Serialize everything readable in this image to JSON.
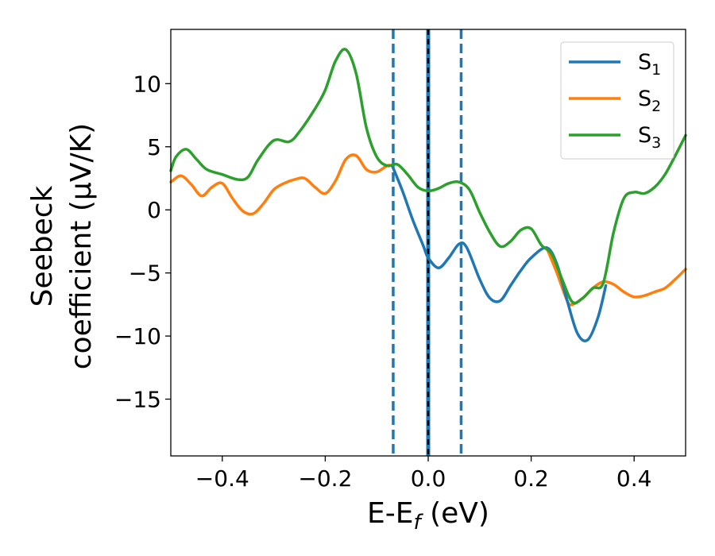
{
  "chart_data": {
    "type": "line",
    "xlabel": "E-E",
    "xlabel_subscript": "f",
    "xlabel_suffix": " (eV)",
    "ylabel_line1": "Seebeck",
    "ylabel_line2": "coefficient  (μV/K)",
    "xlim": [
      -0.5,
      0.5
    ],
    "ylim": [
      -19.5,
      14.3
    ],
    "xticks": [
      -0.4,
      -0.2,
      0.0,
      0.2,
      0.4
    ],
    "xtick_labels": [
      "−0.4",
      "−0.2",
      "0.0",
      "0.2",
      "0.4"
    ],
    "yticks": [
      10,
      5,
      0,
      -5,
      -10,
      -15
    ],
    "ytick_labels": [
      "10",
      "5",
      "0",
      "−5",
      "−10",
      "−15"
    ],
    "legend_position": "top-right",
    "vertical_lines": [
      {
        "x": -0.068,
        "style": "dashed",
        "color": "#1f77b4"
      },
      {
        "x": 0.0,
        "style": "solid-with-black-dashes",
        "color": "#1f77b4"
      },
      {
        "x": 0.064,
        "style": "dashed",
        "color": "#1f77b4"
      }
    ],
    "series": [
      {
        "name": "S",
        "name_subscript": "1",
        "color": "#1f77b4",
        "x": [
          -0.07,
          -0.05,
          -0.03,
          -0.01,
          0.0,
          0.02,
          0.04,
          0.06,
          0.075,
          0.1,
          0.12,
          0.14,
          0.16,
          0.18,
          0.2,
          0.23,
          0.25,
          0.27,
          0.29,
          0.31,
          0.33,
          0.345
        ],
        "y": [
          3.5,
          1.5,
          -0.8,
          -2.8,
          -3.8,
          -4.6,
          -3.8,
          -2.7,
          -3.0,
          -5.5,
          -7.0,
          -7.2,
          -6.0,
          -4.8,
          -3.8,
          -3.0,
          -4.3,
          -7.2,
          -9.8,
          -10.3,
          -8.5,
          -6.0
        ]
      },
      {
        "name": "S",
        "name_subscript": "2",
        "color": "#ff7f0e",
        "x": [
          -0.5,
          -0.48,
          -0.46,
          -0.44,
          -0.42,
          -0.4,
          -0.38,
          -0.36,
          -0.34,
          -0.32,
          -0.3,
          -0.28,
          -0.26,
          -0.24,
          -0.22,
          -0.2,
          -0.18,
          -0.16,
          -0.14,
          -0.12,
          -0.1,
          -0.08,
          -0.07,
          -0.22,
          0.23,
          0.25,
          0.27,
          0.28,
          0.3,
          0.32,
          0.34,
          0.36,
          0.38,
          0.4,
          0.42,
          0.44,
          0.46,
          0.48,
          0.5
        ],
        "y": [
          2.2,
          2.7,
          2.0,
          1.1,
          1.8,
          2.1,
          0.9,
          -0.1,
          -0.3,
          0.5,
          1.6,
          2.1,
          2.4,
          2.5,
          1.8,
          1.3,
          2.3,
          4.0,
          4.3,
          3.2,
          3.0,
          3.5,
          3.5,
          null,
          -3.0,
          -5.0,
          -7.2,
          -7.5,
          -7.0,
          -6.2,
          -5.7,
          -5.9,
          -6.5,
          -6.9,
          -6.8,
          -6.5,
          -6.2,
          -5.5,
          -4.7
        ]
      },
      {
        "name": "S",
        "name_subscript": "3",
        "color": "#2ca02c",
        "x": [
          -0.5,
          -0.49,
          -0.47,
          -0.45,
          -0.43,
          -0.4,
          -0.37,
          -0.35,
          -0.33,
          -0.3,
          -0.27,
          -0.25,
          -0.22,
          -0.2,
          -0.18,
          -0.16,
          -0.14,
          -0.12,
          -0.1,
          -0.08,
          -0.06,
          -0.04,
          -0.02,
          0.0,
          0.02,
          0.04,
          0.06,
          0.08,
          0.1,
          0.12,
          0.14,
          0.16,
          0.18,
          0.2,
          0.22,
          0.24,
          0.26,
          0.28,
          0.3,
          0.32,
          0.34,
          0.36,
          0.38,
          0.4,
          0.42,
          0.44,
          0.46,
          0.48,
          0.5
        ],
        "y": [
          3.1,
          4.2,
          4.8,
          4.0,
          3.2,
          2.8,
          2.4,
          2.6,
          4.0,
          5.5,
          5.4,
          6.2,
          8.0,
          9.5,
          11.8,
          12.7,
          10.8,
          6.5,
          4.2,
          3.5,
          3.6,
          2.8,
          1.8,
          1.5,
          1.7,
          2.1,
          2.2,
          1.6,
          -0.2,
          -1.8,
          -2.9,
          -2.5,
          -1.6,
          -1.5,
          -2.8,
          -3.5,
          -5.5,
          -7.3,
          -7.0,
          -6.2,
          -5.8,
          -1.8,
          0.9,
          1.4,
          1.3,
          1.8,
          2.8,
          4.3,
          5.9
        ]
      }
    ]
  }
}
